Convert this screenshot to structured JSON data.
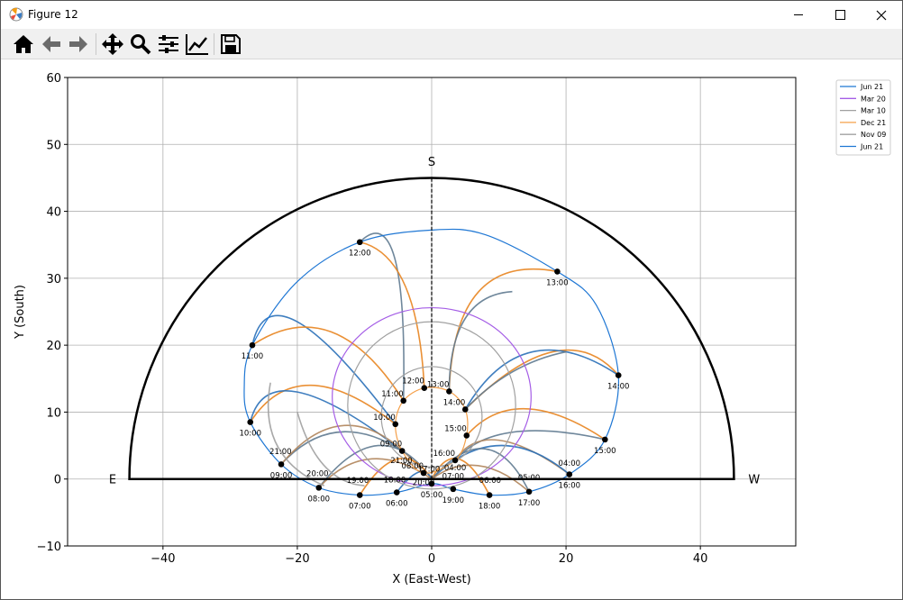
{
  "window": {
    "title": "Figure 12",
    "minimize_icon": "minimize-icon",
    "maximize_icon": "maximize-icon",
    "close_icon": "close-icon"
  },
  "toolbar": {
    "buttons": [
      "home-icon",
      "back-arrow-icon",
      "forward-arrow-icon",
      "pan-move-icon",
      "zoom-magnifier-icon",
      "configure-subplots-icon",
      "edit-axis-icon",
      "save-floppy-icon"
    ]
  },
  "chart_data": {
    "type": "line",
    "xlabel": "X (East-West)",
    "ylabel": "Y (South)",
    "xlim": [
      -54.2,
      54.2
    ],
    "ylim": [
      -10,
      60
    ],
    "xticks": [
      -40,
      -20,
      0,
      20,
      40
    ],
    "yticks": [
      -10,
      0,
      10,
      20,
      30,
      40,
      50,
      60
    ],
    "grid": true,
    "legend_placement": "outside upper right",
    "legend": [
      {
        "name": "Jun 21",
        "color": "#1f77d4"
      },
      {
        "name": "Mar 20",
        "color": "#a55ee6"
      },
      {
        "name": "Mar 10",
        "color": "#a0a0a0"
      },
      {
        "name": "Dec 21",
        "color": "#f5a04a"
      },
      {
        "name": "Nov 09",
        "color": "#a0a0a0"
      },
      {
        "name": "Jun 21",
        "color": "#1f77d4"
      }
    ],
    "horizon": {
      "radius": 45,
      "color": "#000000"
    },
    "meridian": {
      "x": 0,
      "y_range": [
        0,
        45
      ]
    },
    "annotations": [
      {
        "text": "S",
        "x": 0,
        "y": 47.5
      },
      {
        "text": "E",
        "x": -47.5,
        "y": 0
      },
      {
        "text": "W",
        "x": 48,
        "y": 0
      }
    ],
    "series": [
      {
        "legend": 0,
        "color": "#1f77d4",
        "closed": true,
        "points": [
          [
            20.5,
            0.7
          ],
          [
            25.8,
            5.9
          ],
          [
            27.8,
            15.5
          ],
          [
            24.5,
            26
          ],
          [
            18.7,
            31
          ],
          [
            8,
            36.5
          ],
          [
            0,
            37.2
          ],
          [
            -10.7,
            35.4
          ],
          [
            -20,
            29.5
          ],
          [
            -26.7,
            20
          ],
          [
            -27.9,
            13.7
          ],
          [
            -27,
            8.5
          ],
          [
            -22.4,
            2.2
          ],
          [
            -16.8,
            -1.3
          ],
          [
            -10.7,
            -2.4
          ],
          [
            -5.2,
            -2
          ],
          [
            0,
            -0.7
          ],
          [
            3.2,
            -1.5
          ],
          [
            8.6,
            -2.4
          ],
          [
            14.5,
            -1.9
          ]
        ]
      },
      {
        "legend": 1,
        "color": "#a55ee6",
        "ellipse": {
          "cx": 0,
          "cy": 12.3,
          "rx": 14.8,
          "ry": 13.3
        }
      },
      {
        "legend": 2,
        "color": "#a0a0a0",
        "ellipse": {
          "cx": 0,
          "cy": 11,
          "rx": 12.5,
          "ry": 12.5
        }
      },
      {
        "legend": 3,
        "color": "#f5a04a",
        "closed": true,
        "points": [
          [
            -1.1,
            13.6
          ],
          [
            2.6,
            13.1
          ],
          [
            5,
            10.4
          ],
          [
            5.2,
            6.5
          ],
          [
            3.5,
            2.8
          ],
          [
            -1.2,
            0.9
          ],
          [
            -4.4,
            4.2
          ],
          [
            -5.4,
            8.2
          ],
          [
            -4.2,
            11.7
          ]
        ]
      },
      {
        "legend": 4,
        "color": "#a0a0a0",
        "ellipse": {
          "cx": 0,
          "cy": 9.3,
          "rx": 7.5,
          "ry": 7.5
        }
      }
    ],
    "connectors": [
      {
        "color": "#5f7a90",
        "points": [
          [
            -10.7,
            35.4
          ],
          [
            -5.5,
            33
          ],
          [
            -4.2,
            11.7
          ]
        ]
      },
      {
        "color": "#e8841f",
        "points": [
          [
            -10.7,
            35.4
          ],
          [
            -4,
            29
          ],
          [
            -1.1,
            13.6
          ]
        ]
      },
      {
        "color": "#e8841f",
        "points": [
          [
            18.7,
            31
          ],
          [
            7,
            28
          ],
          [
            2.6,
            13.1
          ]
        ]
      },
      {
        "color": "#5f7a90",
        "points": [
          [
            2.6,
            13.1
          ],
          [
            5,
            24
          ],
          [
            12,
            28
          ]
        ]
      },
      {
        "color": "#e8841f",
        "points": [
          [
            27.8,
            15.5
          ],
          [
            18,
            19
          ],
          [
            5,
            10.4
          ]
        ]
      },
      {
        "color": "#2a70b8",
        "points": [
          [
            27.8,
            15.5
          ],
          [
            15,
            19
          ],
          [
            5,
            10.4
          ]
        ]
      },
      {
        "color": "#5f7a90",
        "points": [
          [
            5,
            10.4
          ],
          [
            12,
            16
          ],
          [
            20,
            19
          ]
        ]
      },
      {
        "color": "#2a70b8",
        "points": [
          [
            -26.7,
            20
          ],
          [
            -20,
            23.5
          ],
          [
            -5.4,
            8.2
          ]
        ]
      },
      {
        "color": "#e8841f",
        "points": [
          [
            -26.7,
            20
          ],
          [
            -15,
            22
          ],
          [
            -4.2,
            11.7
          ]
        ]
      },
      {
        "color": "#e8841f",
        "points": [
          [
            -27,
            8.5
          ],
          [
            -18,
            14
          ],
          [
            -5.4,
            8.2
          ]
        ]
      },
      {
        "color": "#2a70b8",
        "points": [
          [
            -27,
            8.5
          ],
          [
            -20,
            13
          ],
          [
            -4.4,
            4.2
          ]
        ]
      },
      {
        "color": "#5f7a90",
        "points": [
          [
            -22.4,
            2.2
          ],
          [
            -14,
            7
          ],
          [
            -4.4,
            4.2
          ]
        ]
      },
      {
        "color": "#b0845a",
        "points": [
          [
            -22.4,
            2.2
          ],
          [
            -12,
            8
          ],
          [
            -1.2,
            0.9
          ]
        ]
      },
      {
        "color": "#e8841f",
        "points": [
          [
            25.8,
            5.9
          ],
          [
            14,
            10.5
          ],
          [
            5.2,
            6.5
          ]
        ]
      },
      {
        "color": "#5f7a90",
        "points": [
          [
            25.8,
            5.9
          ],
          [
            12,
            7
          ],
          [
            3.5,
            2.8
          ]
        ]
      },
      {
        "color": "#b0845a",
        "points": [
          [
            20.5,
            0.7
          ],
          [
            10,
            5.8
          ],
          [
            3.5,
            2.8
          ]
        ]
      },
      {
        "color": "#2a70b8",
        "points": [
          [
            20.5,
            0.7
          ],
          [
            10,
            5
          ],
          [
            0,
            0
          ]
        ]
      },
      {
        "color": "#5f7a90",
        "points": [
          [
            -16.8,
            -1.3
          ],
          [
            -8,
            5
          ],
          [
            0,
            0
          ]
        ]
      },
      {
        "color": "#b0845a",
        "points": [
          [
            -16.8,
            -1.3
          ],
          [
            -9,
            3
          ],
          [
            0,
            0
          ]
        ]
      },
      {
        "color": "#e8841f",
        "points": [
          [
            -10.7,
            -2.4
          ],
          [
            -5,
            3
          ],
          [
            0,
            0
          ]
        ]
      },
      {
        "color": "#2a70b8",
        "points": [
          [
            -5.2,
            -2
          ],
          [
            -2,
            1
          ],
          [
            0,
            0
          ]
        ]
      },
      {
        "color": "#e8841f",
        "points": [
          [
            8.6,
            -2.4
          ],
          [
            4,
            3
          ],
          [
            0,
            0
          ]
        ]
      },
      {
        "color": "#5f7a90",
        "points": [
          [
            14.5,
            -1.9
          ],
          [
            8,
            4.5
          ],
          [
            0,
            0
          ]
        ]
      },
      {
        "color": "#b0845a",
        "points": [
          [
            14.5,
            -1.9
          ],
          [
            7,
            2
          ],
          [
            0,
            0
          ]
        ]
      },
      {
        "color": "#a0a0a0",
        "points": [
          [
            -24,
            14.4
          ],
          [
            -23,
            5
          ],
          [
            -16,
            -1
          ]
        ]
      },
      {
        "color": "#a0a0a0",
        "points": [
          [
            -20,
            10
          ],
          [
            -16,
            2
          ],
          [
            -10,
            -1
          ]
        ]
      }
    ],
    "hour_markers": [
      {
        "x": -10.7,
        "y": 35.4,
        "label": "12:00"
      },
      {
        "x": 18.7,
        "y": 31,
        "label": "13:00"
      },
      {
        "x": 27.8,
        "y": 15.5,
        "label": "14:00"
      },
      {
        "x": -26.7,
        "y": 20,
        "label": "11:00"
      },
      {
        "x": -27,
        "y": 8.5,
        "label": "10:00"
      },
      {
        "x": 25.8,
        "y": 5.9,
        "label": "15:00"
      },
      {
        "x": 20.5,
        "y": 0.7,
        "label": "16:00"
      },
      {
        "x": -22.4,
        "y": 2.2,
        "label": "09:00"
      },
      {
        "x": -16.8,
        "y": -1.3,
        "label": "08:00"
      },
      {
        "x": -10.7,
        "y": -2.4,
        "label": "07:00"
      },
      {
        "x": -5.2,
        "y": -2,
        "label": "06:00"
      },
      {
        "x": 0,
        "y": -0.7,
        "label": "05:00"
      },
      {
        "x": 3.2,
        "y": -1.5,
        "label": "19:00"
      },
      {
        "x": 8.6,
        "y": -2.4,
        "label": "18:00"
      },
      {
        "x": 14.5,
        "y": -1.9,
        "label": "17:00"
      },
      {
        "x": -1.1,
        "y": 13.6,
        "label": "12:00",
        "above": true
      },
      {
        "x": -4.2,
        "y": 11.7,
        "label": "11:00",
        "above": true
      },
      {
        "x": -5.4,
        "y": 8.2,
        "label": "10:00",
        "above": true
      },
      {
        "x": -4.4,
        "y": 4.2,
        "label": "09:00",
        "above": true
      },
      {
        "x": -1.2,
        "y": 0.9,
        "label": "08:00",
        "above": true
      },
      {
        "x": 2.6,
        "y": 13.1,
        "label": "13:00",
        "above": true
      },
      {
        "x": 5,
        "y": 10.4,
        "label": "14:00",
        "above": true
      },
      {
        "x": 5.2,
        "y": 6.5,
        "label": "15:00",
        "above": true
      },
      {
        "x": 3.5,
        "y": 2.8,
        "label": "16:00",
        "above": true
      }
    ],
    "extra_labels": [
      {
        "x": 20.5,
        "y": 2.0,
        "label": "04:00"
      },
      {
        "x": -22.5,
        "y": 3.7,
        "label": "21:00"
      },
      {
        "x": -17,
        "y": 0.4,
        "label": "20:00"
      },
      {
        "x": -11,
        "y": -0.6,
        "label": "19:00"
      },
      {
        "x": -5.5,
        "y": -0.5,
        "label": "18:00"
      },
      {
        "x": -4.5,
        "y": 2.4,
        "label": "21:00"
      },
      {
        "x": -1.2,
        "y": -0.9,
        "label": "20:00"
      },
      {
        "x": -0.4,
        "y": 1.1,
        "label": "17:00"
      },
      {
        "x": 3.5,
        "y": 1.3,
        "label": "04:00"
      },
      {
        "x": 3.2,
        "y": 0.0,
        "label": "07:00"
      },
      {
        "x": 8.7,
        "y": -0.6,
        "label": "06:00"
      },
      {
        "x": 14.5,
        "y": -0.2,
        "label": "05:00"
      }
    ]
  }
}
